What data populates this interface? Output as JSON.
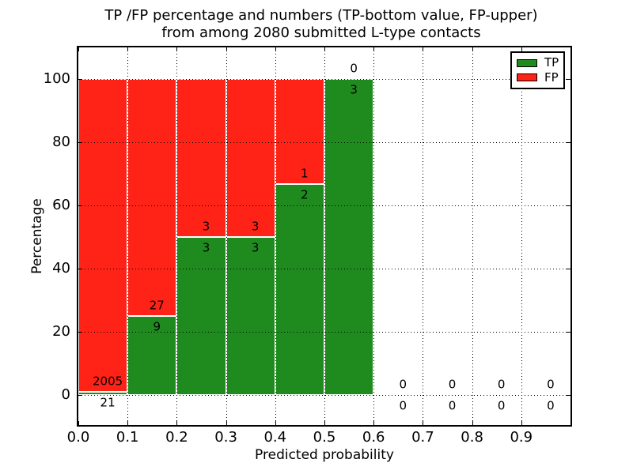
{
  "chart_data": {
    "type": "bar",
    "stacked": true,
    "title_line1": "TP /FP percentage and numbers (TP-bottom value, FP-upper)",
    "title_line2": "from among 2080 submitted L-type contacts",
    "xlabel": "Predicted probability",
    "ylabel": "Percentage",
    "total_contacts": 2080,
    "x_tick_labels": [
      "0.0",
      "0.1",
      "0.2",
      "0.3",
      "0.4",
      "0.5",
      "0.6",
      "0.7",
      "0.8",
      "0.9"
    ],
    "y_ticks": [
      0,
      20,
      40,
      60,
      80,
      100
    ],
    "y_tick_labels": [
      "0",
      "20",
      "40",
      "60",
      "80",
      "100"
    ],
    "xlim": [
      0.0,
      1.0
    ],
    "ylim": [
      -9.5,
      110
    ],
    "grid": true,
    "colors": {
      "tp": "#1f8b1f",
      "fp": "#ff2217"
    },
    "legend": {
      "position": "upper right",
      "entries": [
        {
          "name": "TP",
          "color": "#1f8b1f"
        },
        {
          "name": "FP",
          "color": "#ff2217"
        }
      ]
    },
    "bins": [
      {
        "bin_start": 0.0,
        "bin_end": 0.1,
        "tp": 21,
        "fp": 2005,
        "tp_pct": 1.04,
        "fp_pct": 98.96
      },
      {
        "bin_start": 0.1,
        "bin_end": 0.2,
        "tp": 9,
        "fp": 27,
        "tp_pct": 25,
        "fp_pct": 75
      },
      {
        "bin_start": 0.2,
        "bin_end": 0.3,
        "tp": 3,
        "fp": 3,
        "tp_pct": 50,
        "fp_pct": 50
      },
      {
        "bin_start": 0.3,
        "bin_end": 0.4,
        "tp": 3,
        "fp": 3,
        "tp_pct": 50,
        "fp_pct": 50
      },
      {
        "bin_start": 0.4,
        "bin_end": 0.5,
        "tp": 2,
        "fp": 1,
        "tp_pct": 66.67,
        "fp_pct": 33.33
      },
      {
        "bin_start": 0.5,
        "bin_end": 0.6,
        "tp": 3,
        "fp": 0,
        "tp_pct": 100,
        "fp_pct": 0
      },
      {
        "bin_start": 0.6,
        "bin_end": 0.7,
        "tp": 0,
        "fp": 0,
        "tp_pct": 0,
        "fp_pct": 0
      },
      {
        "bin_start": 0.7,
        "bin_end": 0.8,
        "tp": 0,
        "fp": 0,
        "tp_pct": 0,
        "fp_pct": 0
      },
      {
        "bin_start": 0.8,
        "bin_end": 0.9,
        "tp": 0,
        "fp": 0,
        "tp_pct": 0,
        "fp_pct": 0
      },
      {
        "bin_start": 0.9,
        "bin_end": 1.0,
        "tp": 0,
        "fp": 0,
        "tp_pct": 0,
        "fp_pct": 0
      }
    ]
  }
}
